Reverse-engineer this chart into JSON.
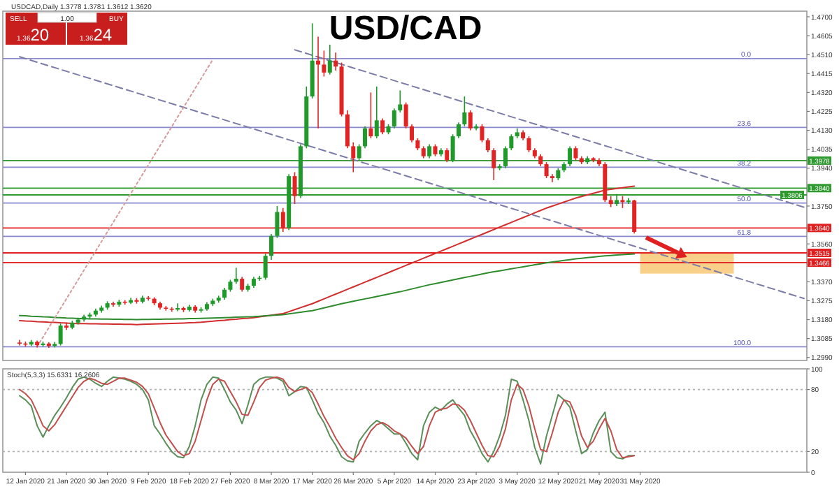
{
  "chart_data": [
    {
      "type": "candlestick",
      "title": "USD/CAD",
      "subtitle": "USDCAD,Daily 1.3778 1.3781 1.3612 1.3620",
      "annotations": [
        "SELL",
        "1.00",
        "BUY",
        "1.3620",
        "1.3624",
        {
          "text": "0.0",
          "y": 1.449
        },
        {
          "text": "23.6",
          "y": 1.4145
        },
        {
          "text": "38.2",
          "y": 1.3945
        },
        {
          "text": "50.0",
          "y": 1.3765
        },
        {
          "text": "61.8",
          "y": 1.3598
        },
        {
          "text": "100.0",
          "y": 1.3044
        }
      ],
      "categories": [
        null,
        null,
        null,
        null,
        null,
        null,
        null,
        null,
        null,
        null,
        null,
        null,
        null,
        null,
        null,
        null,
        null,
        null,
        null,
        null,
        null,
        null,
        null,
        null,
        null,
        null,
        null,
        null,
        null,
        null,
        null,
        null,
        null,
        null,
        null,
        null,
        null,
        null,
        null,
        null,
        null,
        null,
        null,
        null,
        null,
        null,
        null,
        null,
        null,
        null,
        null,
        null,
        null,
        null,
        null,
        null,
        null,
        null,
        null,
        null,
        null,
        null,
        null,
        null,
        null,
        null,
        null,
        null,
        null,
        null,
        null,
        null,
        null,
        null,
        null,
        null,
        null,
        null,
        null,
        null,
        null,
        null,
        null,
        null,
        null,
        null,
        null,
        null,
        null,
        null,
        null,
        null,
        null,
        null,
        null,
        null,
        null,
        null,
        null,
        null,
        null,
        null,
        null,
        null,
        null,
        null,
        null,
        null,
        null,
        null,
        null,
        null,
        null,
        null,
        null,
        null,
        null,
        null,
        null,
        null,
        null,
        null,
        null,
        null,
        null,
        null,
        null,
        null,
        null,
        null,
        null,
        null,
        null,
        null,
        null
      ],
      "tick_labels": "y",
      "ylim": [
        1.2975,
        1.4728
      ],
      "yticks": [
        {
          "value": 1.47,
          "label": "1.4700"
        },
        {
          "value": 1.4605,
          "label": "1.4605"
        },
        {
          "value": 1.451,
          "label": "1.4510"
        },
        {
          "value": 1.4415,
          "label": "1.4415"
        },
        {
          "value": 1.432,
          "label": "1.4320"
        },
        {
          "value": 1.4225,
          "label": "1.4225"
        },
        {
          "value": 1.413,
          "label": "1.4130"
        },
        {
          "value": 1.4035,
          "label": "1.4035"
        },
        {
          "value": 1.394,
          "label": "1.3940"
        },
        {
          "value": 1.375,
          "label": "1.3750"
        },
        {
          "value": 1.356,
          "label": "1.3560"
        },
        {
          "value": 1.337,
          "label": "1.3370"
        },
        {
          "value": 1.3275,
          "label": "1.3275"
        },
        {
          "value": 1.318,
          "label": "1.3180"
        },
        {
          "value": 1.3085,
          "label": "1.3085"
        },
        {
          "value": 1.299,
          "label": "1.2990"
        }
      ],
      "ohlc": [
        [
          1.3065,
          1.3078,
          1.305,
          1.306
        ],
        [
          1.306,
          1.307,
          1.3045,
          1.3055
        ],
        [
          1.3055,
          1.3078,
          1.3048,
          1.3068
        ],
        [
          1.3068,
          1.3075,
          1.304,
          1.3052
        ],
        [
          1.3052,
          1.307,
          1.3045,
          1.306
        ],
        [
          1.306,
          1.3066,
          1.3038,
          1.3048
        ],
        [
          1.3048,
          1.3068,
          1.304,
          1.3058
        ],
        [
          1.3058,
          1.316,
          1.305,
          1.315
        ],
        [
          1.315,
          1.3165,
          1.3128,
          1.314
        ],
        [
          1.314,
          1.3175,
          1.3132,
          1.3165
        ],
        [
          1.3165,
          1.319,
          1.3155,
          1.318
        ],
        [
          1.318,
          1.3205,
          1.317,
          1.3195
        ],
        [
          1.3195,
          1.3215,
          1.3185,
          1.3205
        ],
        [
          1.3205,
          1.3235,
          1.3195,
          1.3225
        ],
        [
          1.3225,
          1.325,
          1.3215,
          1.324
        ],
        [
          1.324,
          1.3272,
          1.323,
          1.3262
        ],
        [
          1.3262,
          1.327,
          1.3245,
          1.3255
        ],
        [
          1.3255,
          1.328,
          1.3245,
          1.327
        ],
        [
          1.327,
          1.3278,
          1.3255,
          1.3265
        ],
        [
          1.3265,
          1.329,
          1.3258,
          1.3278
        ],
        [
          1.3278,
          1.3288,
          1.326,
          1.327
        ],
        [
          1.327,
          1.33,
          1.3262,
          1.329
        ],
        [
          1.329,
          1.3298,
          1.3275,
          1.3285
        ],
        [
          1.3285,
          1.3292,
          1.3252,
          1.3262
        ],
        [
          1.3262,
          1.327,
          1.323,
          1.324
        ],
        [
          1.324,
          1.3248,
          1.3225,
          1.3235
        ],
        [
          1.3235,
          1.3242,
          1.322,
          1.323
        ],
        [
          1.323,
          1.3262,
          1.3222,
          1.3238
        ],
        [
          1.3238,
          1.3245,
          1.3218,
          1.3228
        ],
        [
          1.3228,
          1.3255,
          1.322,
          1.3245
        ],
        [
          1.3245,
          1.3252,
          1.3215,
          1.3225
        ],
        [
          1.3225,
          1.3242,
          1.3215,
          1.3232
        ],
        [
          1.3232,
          1.3268,
          1.3225,
          1.3258
        ],
        [
          1.3258,
          1.3285,
          1.3248,
          1.3275
        ],
        [
          1.3275,
          1.33,
          1.3265,
          1.329
        ],
        [
          1.329,
          1.334,
          1.328,
          1.333
        ],
        [
          1.333,
          1.338,
          1.332,
          1.337
        ],
        [
          1.337,
          1.344,
          1.336,
          1.3385
        ],
        [
          1.3385,
          1.3395,
          1.332,
          1.333
        ],
        [
          1.333,
          1.336,
          1.332,
          1.335
        ],
        [
          1.335,
          1.3395,
          1.334,
          1.3385
        ],
        [
          1.3385,
          1.34,
          1.3375,
          1.339
        ],
        [
          1.339,
          1.351,
          1.338,
          1.35
        ],
        [
          1.35,
          1.361,
          1.348,
          1.36
        ],
        [
          1.36,
          1.375,
          1.359,
          1.372
        ],
        [
          1.372,
          1.374,
          1.362,
          1.364
        ],
        [
          1.364,
          1.391,
          1.363,
          1.39
        ],
        [
          1.39,
          1.392,
          1.376,
          1.38
        ],
        [
          1.38,
          1.406,
          1.379,
          1.405
        ],
        [
          1.405,
          1.435,
          1.404,
          1.43
        ],
        [
          1.43,
          1.4667,
          1.429,
          1.448
        ],
        [
          1.448,
          1.46,
          1.414,
          1.446
        ],
        [
          1.446,
          1.453,
          1.44,
          1.442
        ],
        [
          1.442,
          1.456,
          1.441,
          1.448
        ],
        [
          1.448,
          1.452,
          1.443,
          1.445
        ],
        [
          1.445,
          1.447,
          1.42,
          1.421
        ],
        [
          1.421,
          1.423,
          1.404,
          1.405
        ],
        [
          1.405,
          1.407,
          1.392,
          1.399
        ],
        [
          1.399,
          1.406,
          1.398,
          1.405
        ],
        [
          1.405,
          1.415,
          1.404,
          1.414
        ],
        [
          1.414,
          1.432,
          1.409,
          1.41
        ],
        [
          1.41,
          1.435,
          1.409,
          1.418
        ],
        [
          1.418,
          1.419,
          1.411,
          1.412
        ],
        [
          1.412,
          1.416,
          1.411,
          1.415
        ],
        [
          1.415,
          1.424,
          1.414,
          1.423
        ],
        [
          1.423,
          1.433,
          1.422,
          1.426
        ],
        [
          1.426,
          1.427,
          1.414,
          1.415
        ],
        [
          1.415,
          1.416,
          1.407,
          1.408
        ],
        [
          1.408,
          1.409,
          1.403,
          1.404
        ],
        [
          1.404,
          1.405,
          1.399,
          1.4
        ],
        [
          1.4,
          1.406,
          1.399,
          1.405
        ],
        [
          1.405,
          1.406,
          1.4,
          1.401
        ],
        [
          1.401,
          1.404,
          1.4,
          1.403
        ],
        [
          1.403,
          1.404,
          1.397,
          1.398
        ],
        [
          1.398,
          1.411,
          1.397,
          1.41
        ],
        [
          1.41,
          1.417,
          1.409,
          1.416
        ],
        [
          1.416,
          1.43,
          1.415,
          1.422
        ],
        [
          1.422,
          1.423,
          1.413,
          1.414
        ],
        [
          1.414,
          1.416,
          1.413,
          1.415
        ],
        [
          1.415,
          1.416,
          1.407,
          1.408
        ],
        [
          1.408,
          1.409,
          1.402,
          1.403
        ],
        [
          1.403,
          1.404,
          1.388,
          1.394
        ],
        [
          1.394,
          1.396,
          1.393,
          1.395
        ],
        [
          1.395,
          1.405,
          1.394,
          1.404
        ],
        [
          1.404,
          1.411,
          1.403,
          1.41
        ],
        [
          1.41,
          1.414,
          1.409,
          1.412
        ],
        [
          1.412,
          1.413,
          1.408,
          1.409
        ],
        [
          1.409,
          1.41,
          1.402,
          1.403
        ],
        [
          1.403,
          1.404,
          1.399,
          1.4
        ],
        [
          1.4,
          1.401,
          1.395,
          1.396
        ],
        [
          1.396,
          1.397,
          1.389,
          1.39
        ],
        [
          1.39,
          1.391,
          1.387,
          1.389
        ],
        [
          1.389,
          1.394,
          1.388,
          1.393
        ],
        [
          1.393,
          1.397,
          1.392,
          1.396
        ],
        [
          1.396,
          1.405,
          1.395,
          1.404
        ],
        [
          1.404,
          1.405,
          1.398,
          1.399
        ],
        [
          1.399,
          1.4,
          1.396,
          1.397
        ],
        [
          1.397,
          1.4,
          1.396,
          1.399
        ],
        [
          1.399,
          1.3995,
          1.397,
          1.398
        ],
        [
          1.398,
          1.399,
          1.395,
          1.396
        ],
        [
          1.396,
          1.397,
          1.377,
          1.378
        ],
        [
          1.378,
          1.38,
          1.3745,
          1.376
        ],
        [
          1.376,
          1.381,
          1.375,
          1.378
        ],
        [
          1.378,
          1.38,
          1.374,
          1.377
        ],
        [
          1.377,
          1.379,
          1.376,
          1.3778
        ],
        [
          1.3778,
          1.3781,
          1.3612,
          1.362
        ],
        null,
        null,
        null,
        null,
        null,
        null,
        null,
        null,
        null,
        null,
        null,
        null,
        null,
        null,
        null,
        null,
        null,
        null,
        null,
        null,
        null,
        null,
        null,
        null,
        null,
        null,
        null,
        null,
        null
      ],
      "series": [
        {
          "type": "line",
          "color": "#d22c2c",
          "values": [
            1.3175,
            1.3173,
            1.3172,
            1.317,
            1.3169,
            1.3167,
            1.3166,
            1.3164,
            1.3163,
            1.3161,
            1.316,
            1.316,
            1.3159,
            1.3159,
            1.3158,
            1.3158,
            1.3157,
            1.3157,
            1.3156,
            1.3156,
            1.3155,
            1.3156,
            1.3157,
            1.3158,
            1.3159,
            1.316,
            1.3161,
            1.3162,
            1.3163,
            1.3164,
            1.3165,
            1.3167,
            1.317,
            1.3172,
            1.3175,
            1.3177,
            1.318,
            1.3182,
            1.3185,
            1.3187,
            1.319,
            1.3194,
            1.3198,
            1.3202,
            1.3206,
            1.321,
            1.322,
            1.323,
            1.324,
            1.325,
            1.326,
            1.3272,
            1.3284,
            1.3296,
            1.3308,
            1.332,
            1.3332,
            1.3344,
            1.3356,
            1.3368,
            1.338,
            1.3392,
            1.3404,
            1.3416,
            1.3428,
            1.344,
            1.3452,
            1.3464,
            1.3476,
            1.3488,
            1.35,
            1.3512,
            1.3524,
            1.3536,
            1.3548,
            1.356,
            1.3572,
            1.3584,
            1.3596,
            1.3608,
            1.362,
            1.3632,
            1.3644,
            1.3656,
            1.3668,
            1.368,
            1.3692,
            1.3704,
            1.3716,
            1.3728,
            1.374,
            1.375,
            1.376,
            1.377,
            1.378,
            1.379,
            1.3798,
            1.3806,
            1.3814,
            1.3822,
            1.383,
            1.3834,
            1.3838,
            1.3842,
            1.3846,
            1.385,
            null,
            null,
            null,
            null,
            null,
            null,
            null,
            null,
            null,
            null,
            null,
            null,
            null,
            null,
            null,
            null,
            null,
            null,
            null,
            null,
            null,
            null,
            null,
            null,
            null,
            null,
            null,
            null,
            null
          ]
        },
        {
          "type": "line",
          "color": "#2e8b2e",
          "values": [
            1.32,
            1.3199,
            1.3197,
            1.3196,
            1.3194,
            1.3193,
            1.3191,
            1.319,
            1.3188,
            1.3187,
            1.3185,
            1.3185,
            1.3184,
            1.3184,
            1.3183,
            1.3183,
            1.3182,
            1.3182,
            1.3181,
            1.3181,
            1.318,
            1.3181,
            1.3181,
            1.3182,
            1.3182,
            1.3183,
            1.3183,
            1.3184,
            1.3184,
            1.3185,
            1.3185,
            1.3186,
            1.3187,
            1.3188,
            1.3189,
            1.319,
            1.3191,
            1.3192,
            1.3193,
            1.3194,
            1.3195,
            1.3197,
            1.3199,
            1.3201,
            1.3203,
            1.3205,
            1.3209,
            1.3213,
            1.3217,
            1.3221,
            1.3225,
            1.3232,
            1.3239,
            1.3246,
            1.3253,
            1.326,
            1.3266,
            1.3272,
            1.3278,
            1.3284,
            1.329,
            1.3296,
            1.3302,
            1.3308,
            1.3314,
            1.332,
            1.3327,
            1.3334,
            1.3341,
            1.3348,
            1.3355,
            1.3361,
            1.3367,
            1.3373,
            1.3379,
            1.3385,
            1.3391,
            1.3397,
            1.3403,
            1.3409,
            1.3415,
            1.342,
            1.3425,
            1.343,
            1.3435,
            1.344,
            1.3445,
            1.345,
            1.3455,
            1.346,
            1.3465,
            1.3469,
            1.3473,
            1.3477,
            1.3481,
            1.3485,
            1.3488,
            1.3491,
            1.3494,
            1.3497,
            1.35,
            1.3502,
            1.3504,
            1.3506,
            1.3508,
            1.351,
            null,
            null,
            null,
            null,
            null,
            null,
            null,
            null,
            null,
            null,
            null,
            null,
            null,
            null,
            null,
            null,
            null,
            null,
            null,
            null,
            null,
            null,
            null,
            null,
            null,
            null,
            null,
            null,
            null
          ]
        },
        {
          "type": "line",
          "color": "#7c7ca8",
          "line_style": "dashed",
          "values": [
            1.4499,
            null,
            null,
            null,
            null,
            null,
            null,
            null,
            null,
            null,
            null,
            null,
            null,
            null,
            null,
            null,
            null,
            null,
            null,
            null,
            null,
            null,
            null,
            null,
            null,
            null,
            null,
            null,
            null,
            null,
            null,
            null,
            null,
            null,
            null,
            null,
            null,
            null,
            null,
            null,
            null,
            null,
            null,
            null,
            null,
            null,
            null,
            null,
            null,
            null,
            null,
            null,
            null,
            null,
            null,
            null,
            null,
            null,
            null,
            null,
            null,
            null,
            null,
            null,
            null,
            null,
            null,
            null,
            null,
            null,
            null,
            null,
            null,
            null,
            null,
            null,
            null,
            null,
            null,
            null,
            null,
            null,
            null,
            null,
            null,
            null,
            null,
            null,
            null,
            null,
            null,
            null,
            null,
            null,
            null,
            null,
            null,
            null,
            null,
            null,
            null,
            null,
            null,
            null,
            null,
            null,
            null,
            null,
            null,
            null,
            null,
            null,
            null,
            null,
            null,
            null,
            null,
            null,
            null,
            null,
            null,
            null,
            null,
            null,
            null,
            null,
            null,
            null,
            null,
            null,
            null,
            null,
            null,
            null,
            1.3286
          ]
        },
        {
          "type": "line",
          "color": "#7c7ca8",
          "line_style": "dashed",
          "values": [
            null,
            null,
            null,
            null,
            null,
            null,
            null,
            null,
            null,
            null,
            null,
            null,
            null,
            null,
            null,
            null,
            null,
            null,
            null,
            null,
            null,
            null,
            null,
            null,
            null,
            null,
            null,
            null,
            null,
            null,
            null,
            null,
            null,
            null,
            null,
            null,
            null,
            null,
            null,
            null,
            null,
            null,
            null,
            null,
            null,
            null,
            null,
            1.4534,
            null,
            null,
            null,
            null,
            null,
            null,
            null,
            null,
            null,
            null,
            null,
            null,
            null,
            null,
            null,
            null,
            null,
            null,
            null,
            null,
            null,
            null,
            null,
            null,
            null,
            null,
            null,
            null,
            null,
            null,
            null,
            null,
            null,
            null,
            null,
            null,
            null,
            null,
            null,
            null,
            null,
            null,
            null,
            null,
            null,
            null,
            null,
            null,
            null,
            null,
            null,
            null,
            null,
            null,
            null,
            null,
            null,
            null,
            null,
            null,
            null,
            null,
            null,
            null,
            null,
            null,
            null,
            null,
            null,
            null,
            null,
            null,
            null,
            null,
            null,
            null,
            null,
            null,
            null,
            null,
            null,
            null,
            null,
            null,
            null,
            null,
            1.3744
          ]
        },
        {
          "type": "line",
          "color": "#d59a9a",
          "line_style": "dotted",
          "values": [
            null,
            null,
            null,
            1.3044,
            null,
            null,
            null,
            null,
            null,
            null,
            null,
            null,
            null,
            null,
            null,
            null,
            null,
            null,
            null,
            null,
            null,
            null,
            null,
            null,
            null,
            null,
            null,
            null,
            null,
            null,
            null,
            null,
            null,
            1.4485,
            null,
            null,
            null,
            null,
            null,
            null,
            null,
            null,
            null,
            null,
            null,
            null,
            null,
            null,
            null,
            null,
            null,
            null,
            null,
            null,
            null,
            null,
            null,
            null,
            null,
            null,
            null,
            null,
            null,
            null,
            null,
            null,
            null,
            null,
            null,
            null,
            null,
            null,
            null,
            null,
            null,
            null,
            null,
            null,
            null,
            null,
            null,
            null,
            null,
            null,
            null,
            null,
            null,
            null,
            null,
            null,
            null,
            null,
            null,
            null,
            null,
            null,
            null,
            null,
            null,
            null,
            null,
            null,
            null,
            null,
            null,
            null,
            null,
            null,
            null,
            null,
            null,
            null,
            null,
            null,
            null,
            null,
            null,
            null,
            null,
            null,
            null,
            null,
            null,
            null,
            null,
            null,
            null,
            null,
            null,
            null,
            null,
            null,
            null,
            null,
            null
          ]
        }
      ],
      "ref_lines": [
        {
          "axis": "y",
          "value": 1.449
        },
        {
          "axis": "y",
          "value": 1.4145
        },
        {
          "axis": "y",
          "value": 1.3945
        },
        {
          "axis": "y",
          "value": 1.3765
        },
        {
          "axis": "y",
          "value": 1.3598
        },
        {
          "axis": "y",
          "value": 1.3044
        },
        {
          "axis": "y",
          "value": 1.3978,
          "label": "1.3978",
          "color": "#2f9a2f"
        },
        {
          "axis": "y",
          "value": 1.384,
          "label": "1.3840",
          "color": "#2f9a2f"
        },
        {
          "axis": "y",
          "value": 1.3806,
          "label": "1.3806",
          "color": "#2f9a2f"
        },
        {
          "axis": "y",
          "value": 1.364,
          "label": "1.3640",
          "color": "#e02020"
        },
        {
          "axis": "y",
          "value": 1.3515,
          "label": "1.3515",
          "color": "#e02020"
        },
        {
          "axis": "y",
          "value": 1.3466,
          "label": "1.3466",
          "color": "#e02020"
        }
      ],
      "bands": [
        {
          "axis": "y",
          "from": 1.3411,
          "to": 1.3515,
          "color": "#f7c46c"
        }
      ]
    },
    {
      "type": "line",
      "title": "Stoch(5,3,3) 15.6331 16.2606",
      "categories": [
        null,
        "12 Jan 2020",
        null,
        null,
        null,
        null,
        null,
        null,
        "21 Jan 2020",
        null,
        null,
        null,
        null,
        null,
        null,
        "30 Jan 2020",
        null,
        null,
        null,
        null,
        null,
        null,
        "9 Feb 2020",
        null,
        null,
        null,
        null,
        null,
        null,
        "18 Feb 2020",
        null,
        null,
        null,
        null,
        null,
        null,
        "27 Feb 2020",
        null,
        null,
        null,
        null,
        null,
        null,
        "8 Mar 2020",
        null,
        null,
        null,
        null,
        null,
        null,
        "17 Mar 2020",
        null,
        null,
        null,
        null,
        null,
        null,
        "26 Mar 2020",
        null,
        null,
        null,
        null,
        null,
        null,
        "5 Apr 2020",
        null,
        null,
        null,
        null,
        null,
        null,
        "14 Apr 2020",
        null,
        null,
        null,
        null,
        null,
        null,
        "23 Apr 2020",
        null,
        null,
        null,
        null,
        null,
        null,
        "3 May 2020",
        null,
        null,
        null,
        null,
        null,
        null,
        "12 May 2020",
        null,
        null,
        null,
        null,
        null,
        null,
        "21 May 2020",
        null,
        null,
        null,
        null,
        null,
        null,
        "31 May 2020",
        null,
        null,
        null,
        null,
        null,
        null,
        null,
        null,
        null,
        null,
        null,
        null,
        null,
        null,
        null,
        null,
        null,
        null,
        null,
        null,
        null,
        null,
        null,
        null,
        null,
        null,
        null,
        null
      ],
      "ylim": [
        0,
        100
      ],
      "yticks": [
        0,
        20,
        80,
        100
      ],
      "ref_lines": [
        {
          "axis": "y",
          "value": 20,
          "line_style": "dotted",
          "color": "#b0b0b0"
        },
        {
          "axis": "y",
          "value": 80,
          "line_style": "dotted",
          "color": "#b0b0b0"
        }
      ],
      "series": [
        {
          "color": "#5a8f5a",
          "values": [
            74,
            70,
            64,
            45,
            34,
            45,
            55,
            63,
            72,
            82,
            90,
            92,
            90,
            86,
            83,
            88,
            92,
            91,
            90,
            88,
            85,
            80,
            70,
            45,
            37,
            28,
            20,
            15,
            14,
            25,
            45,
            70,
            85,
            92,
            91,
            80,
            68,
            60,
            47,
            65,
            85,
            90,
            92,
            92,
            91,
            88,
            74,
            78,
            83,
            82,
            70,
            57,
            48,
            35,
            26,
            15,
            11,
            10,
            30,
            38,
            45,
            50,
            47,
            42,
            37,
            37,
            28,
            18,
            12,
            45,
            58,
            63,
            60,
            66,
            70,
            62,
            55,
            40,
            30,
            18,
            10,
            20,
            35,
            55,
            90,
            88,
            70,
            50,
            24,
            8,
            35,
            55,
            75,
            70,
            63,
            40,
            18,
            22,
            38,
            50,
            58,
            20,
            14,
            13,
            16,
            16,
            null,
            null,
            null,
            null,
            null,
            null,
            null,
            null,
            null,
            null,
            null,
            null,
            null,
            null,
            null,
            null,
            null,
            null,
            null,
            null,
            null,
            null,
            null,
            null,
            null,
            null,
            null,
            null,
            null
          ]
        },
        {
          "color": "#c0504d",
          "values": [
            80,
            76,
            70,
            58,
            45,
            40,
            46,
            55,
            64,
            73,
            82,
            88,
            91,
            89,
            86,
            85,
            88,
            91,
            91,
            89,
            87,
            83,
            76,
            62,
            48,
            36,
            28,
            20,
            16,
            18,
            30,
            50,
            70,
            85,
            90,
            88,
            78,
            68,
            56,
            55,
            68,
            82,
            89,
            91,
            92,
            90,
            82,
            78,
            80,
            82,
            77,
            66,
            54,
            44,
            33,
            24,
            16,
            12,
            18,
            30,
            40,
            46,
            48,
            45,
            40,
            37,
            33,
            25,
            18,
            25,
            45,
            58,
            61,
            62,
            66,
            65,
            60,
            50,
            38,
            26,
            16,
            15,
            25,
            42,
            70,
            85,
            80,
            64,
            42,
            22,
            20,
            38,
            58,
            70,
            68,
            55,
            35,
            24,
            30,
            42,
            52,
            40,
            22,
            14,
            15,
            16,
            null,
            null,
            null,
            null,
            null,
            null,
            null,
            null,
            null,
            null,
            null,
            null,
            null,
            null,
            null,
            null,
            null,
            null,
            null,
            null,
            null,
            null,
            null,
            null,
            null,
            null,
            null,
            null,
            null
          ]
        }
      ]
    }
  ]
}
